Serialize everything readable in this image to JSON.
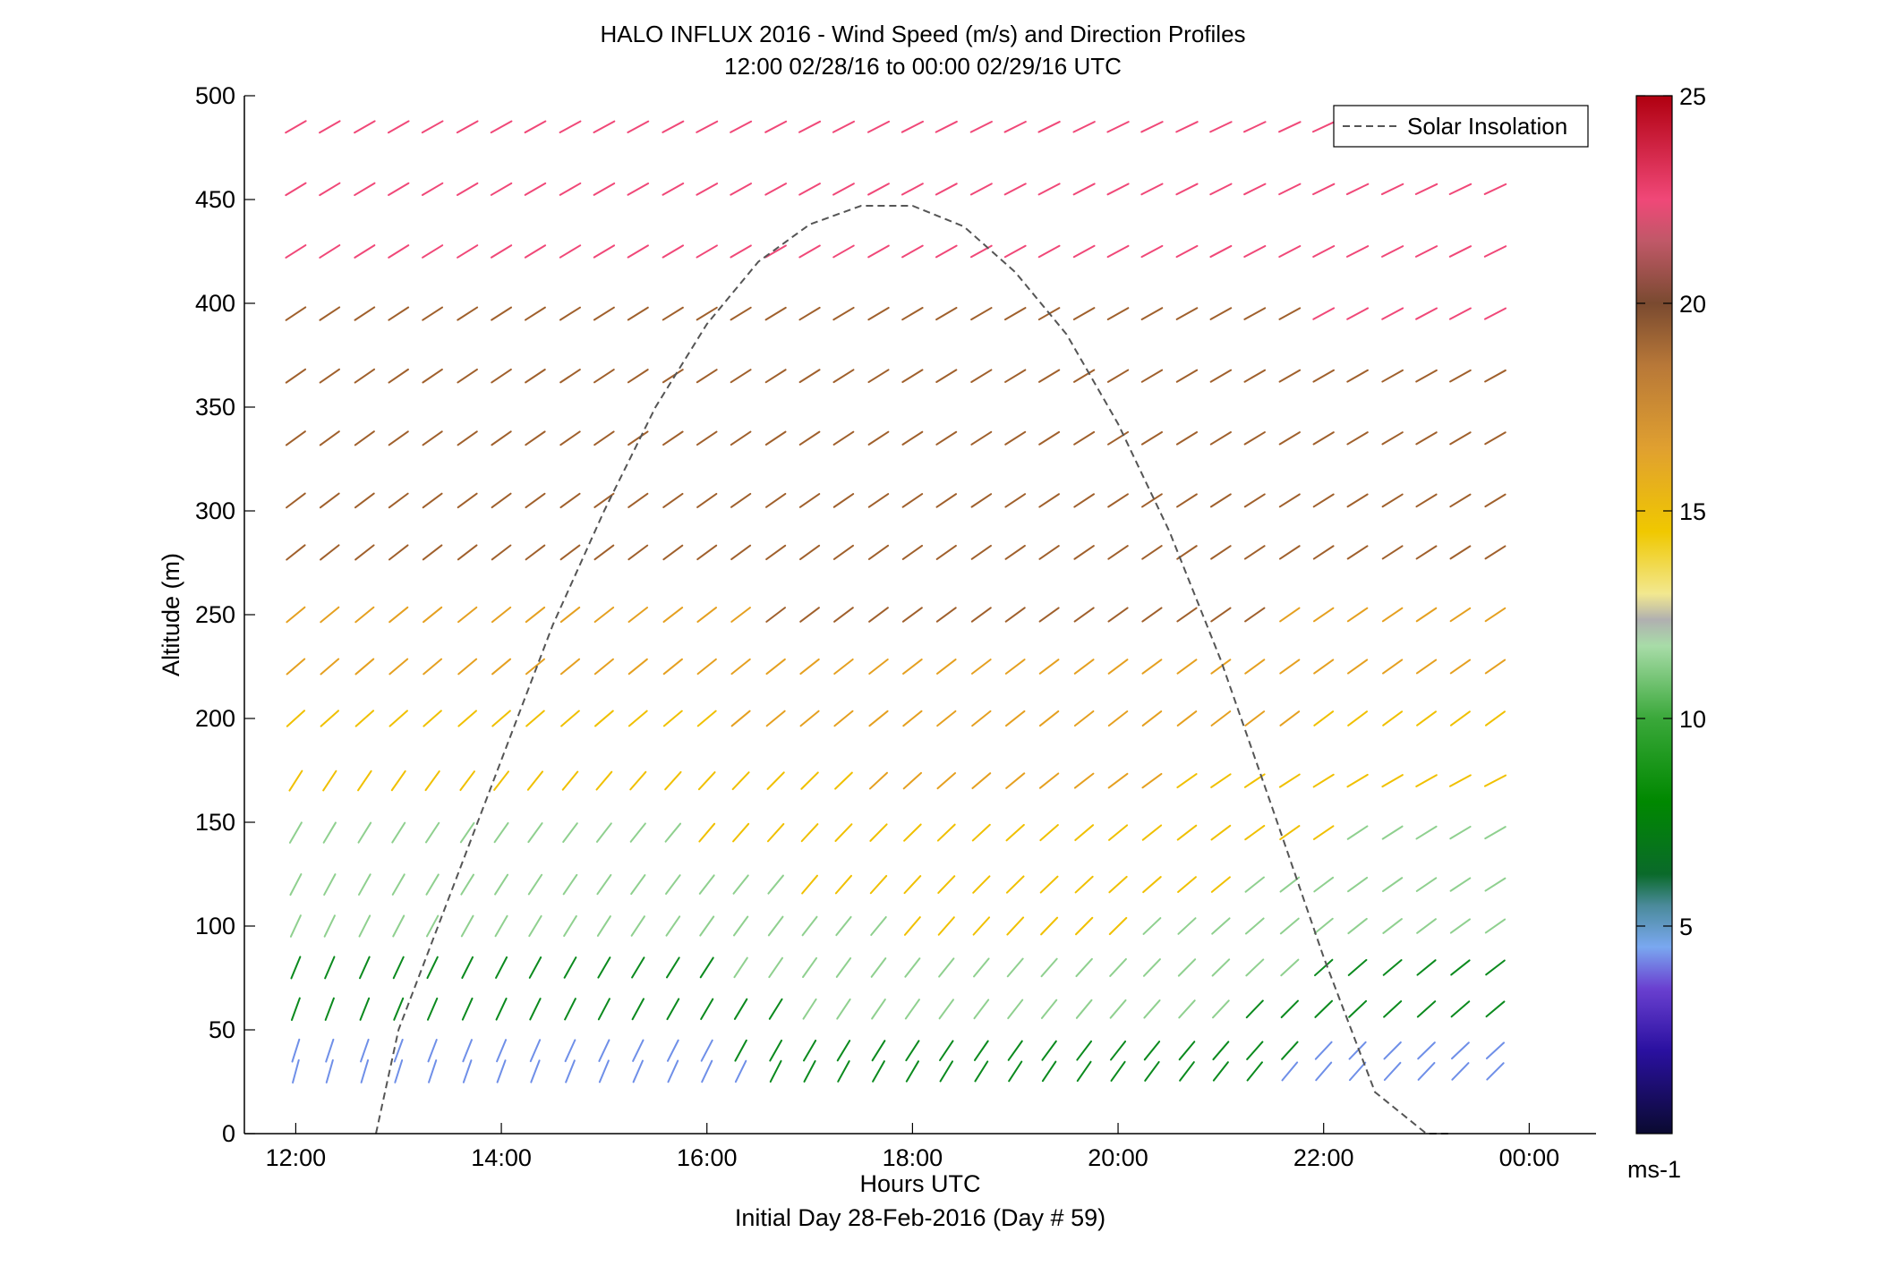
{
  "chart_data": {
    "type": "wind-barb-profile",
    "title": "HALO INFLUX 2016 - Wind Speed (m/s) and Direction Profiles",
    "subtitle": "12:00 02/28/16 to 00:00 02/29/16  UTC",
    "xlabel": "Hours UTC",
    "xlabel_note": "Initial Day 28-Feb-2016 (Day # 59)",
    "ylabel": "Altitude (m)",
    "xlim": [
      11.5,
      24.65
    ],
    "ylim": [
      0,
      500
    ],
    "x_ticks": [
      12,
      14,
      16,
      18,
      20,
      22,
      24
    ],
    "x_tick_labels": [
      "12:00",
      "14:00",
      "16:00",
      "18:00",
      "20:00",
      "22:00",
      "00:00"
    ],
    "y_ticks": [
      0,
      50,
      100,
      150,
      200,
      250,
      300,
      350,
      400,
      450,
      500
    ],
    "y_tick_labels": [
      "0",
      "50",
      "100",
      "150",
      "200",
      "250",
      "300",
      "350",
      "400",
      "450",
      "500"
    ],
    "grid": false,
    "legend": {
      "entries": [
        "Solar Insolation"
      ],
      "placement": "top-right"
    },
    "colorbar": {
      "label": "ms-1",
      "range": [
        0,
        25
      ],
      "ticks": [
        5,
        10,
        15,
        20,
        25
      ],
      "tick_labels": [
        "5",
        "10",
        "15",
        "20",
        "25"
      ]
    },
    "wind_vectors": {
      "times_utc": [
        12,
        12.33,
        12.67,
        13,
        13.33,
        13.67,
        14,
        14.33,
        14.67,
        15,
        15.33,
        15.67,
        16,
        16.33,
        16.67,
        17,
        17.33,
        17.67,
        18,
        18.33,
        18.67,
        19,
        19.33,
        19.67,
        20,
        20.33,
        20.67,
        21,
        21.33,
        21.67,
        22,
        22.33,
        22.67,
        23,
        23.33,
        23.67
      ],
      "altitudes_m": [
        30,
        40,
        60,
        80,
        100,
        120,
        145,
        170,
        200,
        225,
        250,
        280,
        305,
        335,
        365,
        395,
        425,
        455,
        485
      ],
      "speed_profile_ms": [
        5,
        6,
        8,
        9,
        10,
        11,
        12,
        14,
        15,
        16,
        17,
        18,
        19,
        19,
        20,
        20,
        21,
        21,
        22
      ],
      "direction_note": "vectors point toward upper-right; steeper near surface early, flatter aloft"
    },
    "solar_insolation_curve": {
      "x": [
        12.78,
        13,
        13.5,
        14,
        14.5,
        15,
        15.5,
        16,
        16.5,
        17,
        17.5,
        18,
        18.5,
        19,
        19.5,
        20,
        20.5,
        21,
        21.5,
        22,
        22.5,
        23,
        23.25
      ],
      "y": [
        0,
        50,
        115,
        180,
        245,
        300,
        350,
        390,
        420,
        438,
        447,
        447,
        437,
        415,
        385,
        342,
        290,
        228,
        157,
        85,
        20,
        -30,
        0
      ]
    },
    "colors": {
      "vector_low": "#6f8fe8",
      "vector_green": "#0b8a1e",
      "vector_lightgreen": "#8fd08f",
      "vector_yellow": "#f0c000",
      "vector_orange": "#e5a020",
      "vector_brown": "#a0602c",
      "vector_pink": "#f04878",
      "curve": "#555555"
    }
  }
}
